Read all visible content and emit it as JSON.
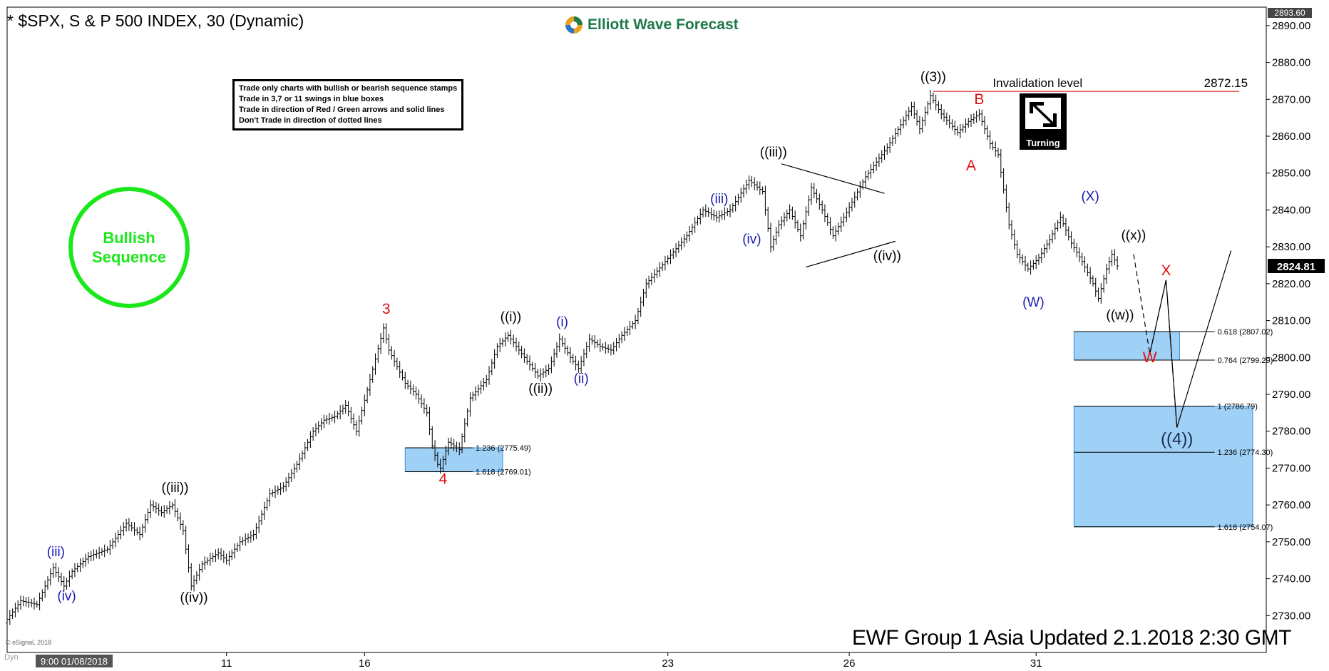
{
  "title": "* $SPX, S & P 500 INDEX, 30 (Dynamic)",
  "logo_text": "Elliott Wave Forecast",
  "rules": [
    "Trade only charts with bullish or bearish sequence stamps",
    "Trade in 3,7 or 11 swings in blue boxes",
    "Trade in direction of Red / Green arrows and solid lines",
    "Don't Trade in direction of dotted lines"
  ],
  "sequence_stamp": {
    "line1": "Bullish",
    "line2": "Sequence",
    "color": "#1be81b"
  },
  "turning_label": "Turning",
  "footer": "EWF Group 1 Asia Updated 2.1.2018 2:30 GMT",
  "copyright": "© eSignal, 2018",
  "dyn_label": "Dyn",
  "colors": {
    "bars": "#000000",
    "blue_label": "#1a1ab4",
    "red_label": "#e01010",
    "box_fill": "#9fd0f5",
    "box_stroke": "#3a8fd6",
    "invalidation_line": "#d00000",
    "price_tag": "#000000"
  },
  "chart_data": {
    "type": "ohlc",
    "title": "* $SPX, S & P 500 INDEX, 30 (Dynamic)",
    "ylim": [
      2720,
      2895
    ],
    "y_ticks": [
      2730,
      2740,
      2750,
      2760,
      2770,
      2780,
      2790,
      2800,
      2810,
      2820,
      2830,
      2840,
      2850,
      2860,
      2870,
      2880,
      2890
    ],
    "y_tick_labels": [
      "2730.00",
      "2740.00",
      "2750.00",
      "2760.00",
      "2770.00",
      "2780.00",
      "2790.00",
      "2800.00",
      "2810.00",
      "2820.00",
      "2830.00",
      "2840.00",
      "2850.00",
      "2860.00",
      "2870.00",
      "2880.00",
      "2890.00"
    ],
    "top_price_label": "2893.60",
    "last_price": 2824.81,
    "last_price_label": "2824.81",
    "x_labels": [
      {
        "t": 0,
        "label": "9:00 01/08/2018"
      },
      {
        "t": 81,
        "label": "11"
      },
      {
        "t": 132,
        "label": "16"
      },
      {
        "t": 244,
        "label": "23"
      },
      {
        "t": 311,
        "label": "26"
      },
      {
        "t": 380,
        "label": "31"
      }
    ],
    "path": [
      [
        0,
        2728
      ],
      [
        6,
        2734
      ],
      [
        12,
        2733
      ],
      [
        18,
        2743
      ],
      [
        22,
        2738
      ],
      [
        25,
        2742
      ],
      [
        31,
        2746
      ],
      [
        38,
        2748
      ],
      [
        45,
        2755
      ],
      [
        50,
        2752
      ],
      [
        54,
        2760
      ],
      [
        58,
        2758
      ],
      [
        62,
        2760
      ],
      [
        66,
        2753
      ],
      [
        69,
        2738
      ],
      [
        73,
        2744
      ],
      [
        79,
        2747
      ],
      [
        82,
        2745
      ],
      [
        87,
        2750
      ],
      [
        92,
        2752
      ],
      [
        98,
        2763
      ],
      [
        103,
        2765
      ],
      [
        108,
        2771
      ],
      [
        114,
        2780
      ],
      [
        118,
        2783
      ],
      [
        122,
        2784
      ],
      [
        126,
        2787
      ],
      [
        130,
        2780
      ],
      [
        140,
        2808
      ],
      [
        142,
        2802
      ],
      [
        148,
        2793
      ],
      [
        152,
        2790
      ],
      [
        156,
        2785
      ],
      [
        158,
        2776
      ],
      [
        160,
        2771
      ],
      [
        161,
        2770
      ],
      [
        164,
        2777
      ],
      [
        168,
        2775
      ],
      [
        172,
        2789
      ],
      [
        178,
        2794
      ],
      [
        182,
        2803
      ],
      [
        186,
        2806
      ],
      [
        192,
        2800
      ],
      [
        197,
        2795
      ],
      [
        201,
        2797
      ],
      [
        205,
        2805
      ],
      [
        209,
        2800
      ],
      [
        212,
        2797
      ],
      [
        216,
        2805
      ],
      [
        220,
        2803
      ],
      [
        224,
        2802
      ],
      [
        228,
        2806
      ],
      [
        233,
        2810
      ],
      [
        237,
        2820
      ],
      [
        244,
        2826
      ],
      [
        252,
        2833
      ],
      [
        258,
        2840
      ],
      [
        263,
        2838
      ],
      [
        268,
        2840
      ],
      [
        275,
        2848
      ],
      [
        280,
        2845
      ],
      [
        283,
        2830
      ],
      [
        286,
        2836
      ],
      [
        290,
        2840
      ],
      [
        294,
        2833
      ],
      [
        298,
        2846
      ],
      [
        302,
        2840
      ],
      [
        306,
        2833
      ],
      [
        310,
        2838
      ],
      [
        318,
        2849
      ],
      [
        326,
        2857
      ],
      [
        335,
        2868
      ],
      [
        338,
        2862
      ],
      [
        342,
        2871
      ],
      [
        346,
        2866
      ],
      [
        352,
        2861
      ],
      [
        356,
        2864
      ],
      [
        360,
        2866
      ],
      [
        364,
        2858
      ],
      [
        367,
        2855
      ],
      [
        371,
        2836
      ],
      [
        374,
        2828
      ],
      [
        378,
        2824
      ],
      [
        382,
        2827
      ],
      [
        386,
        2832
      ],
      [
        390,
        2838
      ],
      [
        394,
        2831
      ],
      [
        398,
        2826
      ],
      [
        402,
        2820
      ],
      [
        404,
        2816
      ],
      [
        407,
        2824
      ],
      [
        409,
        2828
      ],
      [
        411,
        2824.81
      ]
    ],
    "annotations": [
      {
        "label": "(iii)",
        "t": 18,
        "y": 2743,
        "dy": -16,
        "color": "blue"
      },
      {
        "label": "(iv)",
        "t": 22,
        "y": 2738,
        "dy": 20,
        "color": "blue"
      },
      {
        "label": "((iii))",
        "t": 62,
        "y": 2760,
        "dy": -18,
        "color": "black"
      },
      {
        "label": "((iv))",
        "t": 69,
        "y": 2738,
        "dy": 22,
        "color": "black"
      },
      {
        "label": "3",
        "t": 140,
        "y": 2808,
        "dy": -20,
        "color": "red"
      },
      {
        "label": "4",
        "t": 161,
        "y": 2770,
        "dy": 22,
        "color": "red"
      },
      {
        "label": "((i))",
        "t": 186,
        "y": 2806,
        "dy": -20,
        "color": "black"
      },
      {
        "label": "((ii))",
        "t": 197,
        "y": 2795,
        "dy": 24,
        "color": "black"
      },
      {
        "label": "(i)",
        "t": 205,
        "y": 2805,
        "dy": -18,
        "color": "blue"
      },
      {
        "label": "(ii)",
        "t": 212,
        "y": 2797,
        "dy": 20,
        "color": "blue"
      },
      {
        "label": "(iii)",
        "t": 263,
        "y": 2838,
        "dy": -20,
        "color": "blue"
      },
      {
        "label": "(iv)",
        "t": 275,
        "y": 2834,
        "dy": 16,
        "color": "blue"
      },
      {
        "label": "((iii))",
        "t": 283,
        "y": 2851,
        "dy": -18,
        "color": "black"
      },
      {
        "label": "((iv))",
        "t": 325,
        "y": 2831,
        "dy": 24,
        "color": "black"
      },
      {
        "label": "((3))",
        "t": 342,
        "y": 2871,
        "dy": -20,
        "color": "black"
      },
      {
        "label": "B",
        "t": 359,
        "y": 2866,
        "dy": -14,
        "color": "red"
      },
      {
        "label": "A",
        "t": 356,
        "y": 2855,
        "dy": 22,
        "color": "red"
      },
      {
        "label": "(W)",
        "t": 379,
        "y": 2818,
        "dy": 22,
        "color": "blue"
      },
      {
        "label": "(X)",
        "t": 400,
        "y": 2839,
        "dy": -18,
        "color": "blue"
      },
      {
        "label": "((x))",
        "t": 416,
        "y": 2830,
        "dy": -10,
        "color": "black"
      },
      {
        "label": "((w))",
        "t": 411,
        "y": 2813,
        "dy": 14,
        "color": "black"
      },
      {
        "label": "X",
        "t": 428,
        "y": 2820,
        "dy": -12,
        "color": "red"
      },
      {
        "label": "W",
        "t": 422,
        "y": 2801,
        "dy": 12,
        "color": "red"
      },
      {
        "label": "((4))",
        "t": 432,
        "y": 2781,
        "dy": 24,
        "color": "navy"
      }
    ],
    "invalidation": {
      "label": "Invalidation  level",
      "value_label": "2872.15",
      "value": 2872.15,
      "t_start": 342,
      "t_end": 455
    },
    "triangle": [
      [
        [
          286,
          2852.5
        ],
        [
          324,
          2844.5
        ]
      ],
      [
        [
          295,
          2824.5
        ],
        [
          328,
          2831.5
        ]
      ]
    ],
    "projection": {
      "dotted": [
        [
          416,
          2828
        ],
        [
          422,
          2801
        ],
        [
          428,
          2821
        ],
        [
          432,
          2781
        ]
      ],
      "solid": [
        [
          422,
          2801
        ],
        [
          428,
          2821
        ],
        [
          432,
          2781
        ],
        [
          452,
          2829
        ]
      ]
    },
    "boxes": [
      {
        "t0": 147,
        "t1": 183,
        "y0": 2769.01,
        "y1": 2775.49,
        "levels": [
          {
            "label": "1.236 (2775.49)",
            "value": 2775.49
          },
          {
            "label": "1.618 (2769.01)",
            "value": 2769.01
          }
        ],
        "label_t": 173
      },
      {
        "t0": 394,
        "t1": 433,
        "y0": 2799.29,
        "y1": 2807.02,
        "levels": [
          {
            "label": "0.618 (2807.02)",
            "value": 2807.02
          },
          {
            "label": "0.764 (2799.29)",
            "value": 2799.29
          }
        ],
        "label_t": 447
      },
      {
        "t0": 394,
        "t1": 460,
        "y0": 2754.07,
        "y1": 2786.79,
        "levels": [
          {
            "label": "1 (2786.79)",
            "value": 2786.79
          },
          {
            "label": "1.236 (2774.30)",
            "value": 2774.3
          },
          {
            "label": "1.618 (2754.07)",
            "value": 2754.07
          }
        ],
        "label_t": 447
      }
    ]
  }
}
